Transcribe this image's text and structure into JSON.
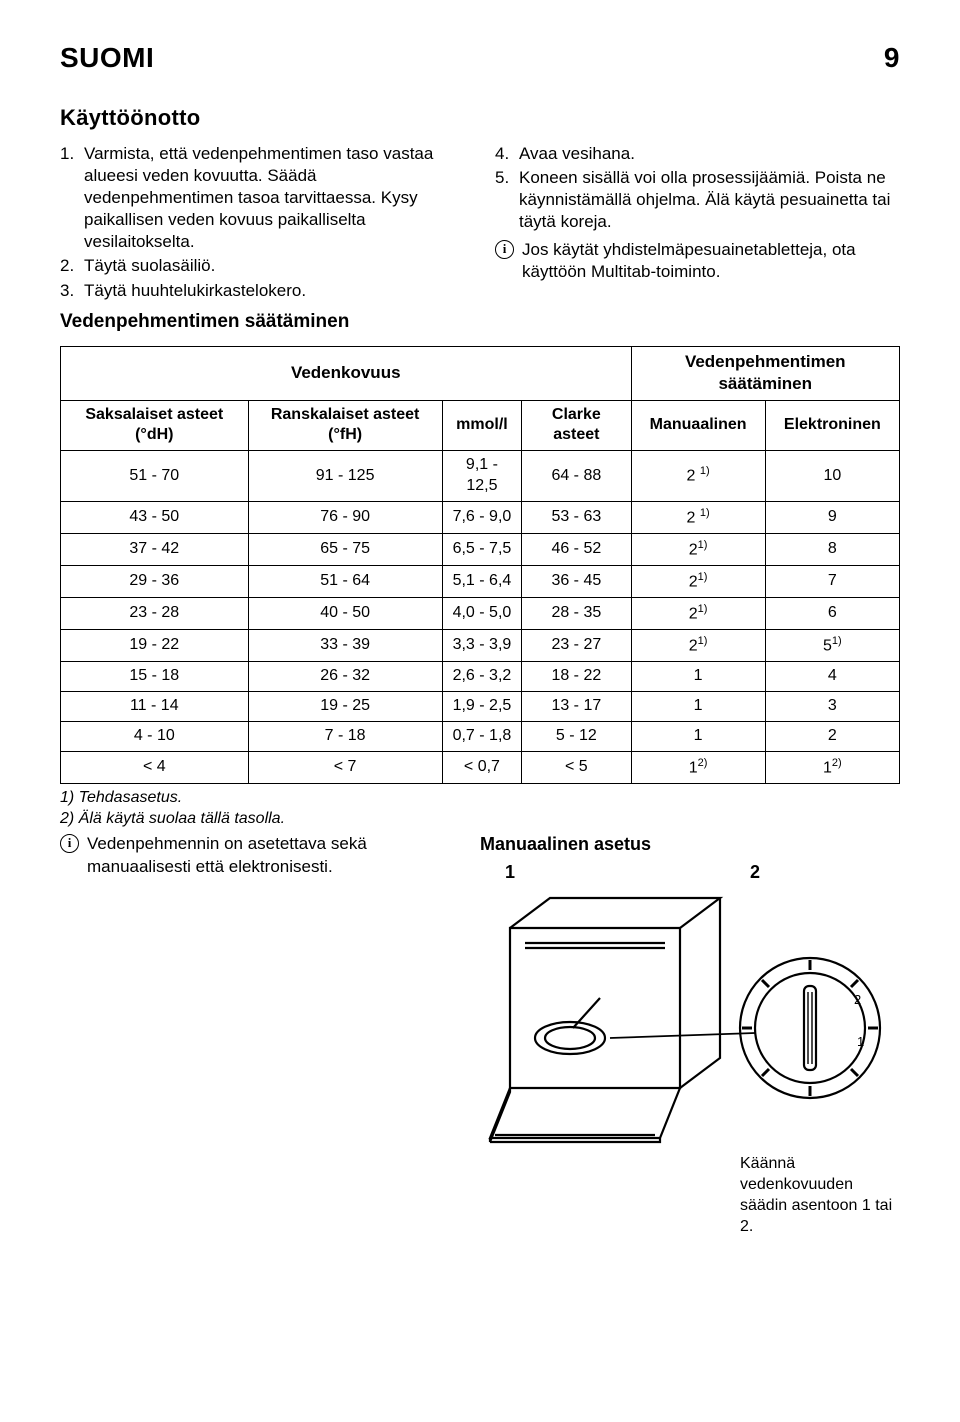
{
  "header": {
    "lang": "SUOMI",
    "page": "9"
  },
  "section_title": "Käyttöönotto",
  "left_list": [
    {
      "n": "1.",
      "t": "Varmista, että vedenpehmentimen taso vastaa alueesi veden kovuutta. Säädä vedenpehmentimen tasoa tarvittaessa. Kysy paikallisen veden kovuus paikalliselta vesilaitokselta."
    },
    {
      "n": "2.",
      "t": "Täytä suolasäiliö."
    },
    {
      "n": "3.",
      "t": "Täytä huuhtelukirkastelokero."
    }
  ],
  "right_list": [
    {
      "n": "4.",
      "t": "Avaa vesihana."
    },
    {
      "n": "5.",
      "t": "Koneen sisällä voi olla prosessijäämiä. Poista ne käynnistämällä ohjelma. Älä käytä pesuainetta tai täytä koreja."
    }
  ],
  "right_info": "Jos käytät yhdistelmäpesuainetabletteja, ota käyttöön Multitab-toiminto.",
  "sub_title": "Vedenpehmentimen säätäminen",
  "table": {
    "header1": {
      "c1": "Vedenkovuus",
      "c2": "Vedenpehmentimen säätäminen"
    },
    "header2": [
      "Saksalaiset asteet (°dH)",
      "Ranskalaiset asteet (°fH)",
      "mmol/l",
      "Clarke asteet",
      "Manuaalinen",
      "Elektroninen"
    ],
    "rows": [
      [
        "51 - 70",
        "91 - 125",
        "9,1 - 12,5",
        "64 - 88",
        "2 ",
        "1)",
        "10"
      ],
      [
        "43 - 50",
        "76 - 90",
        "7,6 - 9,0",
        "53 - 63",
        "2 ",
        "1)",
        "9"
      ],
      [
        "37 - 42",
        "65 - 75",
        "6,5 - 7,5",
        "46 - 52",
        "2",
        "1)",
        "8"
      ],
      [
        "29 - 36",
        "51 - 64",
        "5,1 - 6,4",
        "36 - 45",
        "2",
        "1)",
        "7"
      ],
      [
        "23 - 28",
        "40 - 50",
        "4,0 - 5,0",
        "28 - 35",
        "2",
        "1)",
        "6"
      ],
      [
        "19 - 22",
        "33 - 39",
        "3,3 - 3,9",
        "23 - 27",
        "2",
        "1)",
        "5",
        "1)"
      ],
      [
        "15 - 18",
        "26 - 32",
        "2,6 - 3,2",
        "18 - 22",
        "1",
        "",
        "4"
      ],
      [
        "11 - 14",
        "19 - 25",
        "1,9 - 2,5",
        "13 - 17",
        "1",
        "",
        "3"
      ],
      [
        "4 - 10",
        "7 - 18",
        "0,7 - 1,8",
        "5 - 12",
        "1",
        "",
        "2"
      ],
      [
        "< 4",
        "< 7",
        "< 0,7",
        "< 5",
        "1",
        "2)",
        "1",
        "2)"
      ]
    ]
  },
  "footnotes": [
    "1) Tehdasasetus.",
    "2) Älä käytä suolaa tällä tasolla."
  ],
  "bottom_info": "Vedenpehmennin on asetettava sekä manuaalisesti että elektronisesti.",
  "manual_title": "Manuaalinen asetus",
  "manual_n1": "1",
  "manual_n2": "2",
  "caption": "Käännä vedenkovuuden säädin asentoon 1 tai 2."
}
